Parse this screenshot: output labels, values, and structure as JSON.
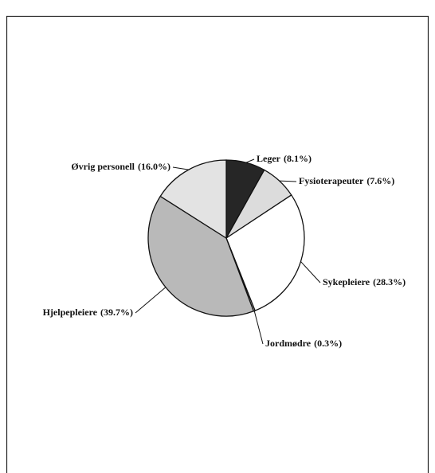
{
  "chart_data": {
    "type": "pie",
    "categories": [
      "Leger",
      "Fysioterapeuter",
      "Sykepleiere",
      "Jordmødre",
      "Hjelpepleiere",
      "Øvrig personell"
    ],
    "values": [
      8.1,
      7.6,
      28.3,
      0.3,
      39.7,
      16.0
    ],
    "value_labels": [
      "(8.1%)",
      "(7.6%)",
      "(28.3%)",
      "(0.3%)",
      "(39.7%)",
      "(16.0%)"
    ],
    "colors": [
      "#262626",
      "#dcdcdc",
      "#ffffff",
      "#ffffff",
      "#b9b9b9",
      "#e3e3e3"
    ]
  }
}
